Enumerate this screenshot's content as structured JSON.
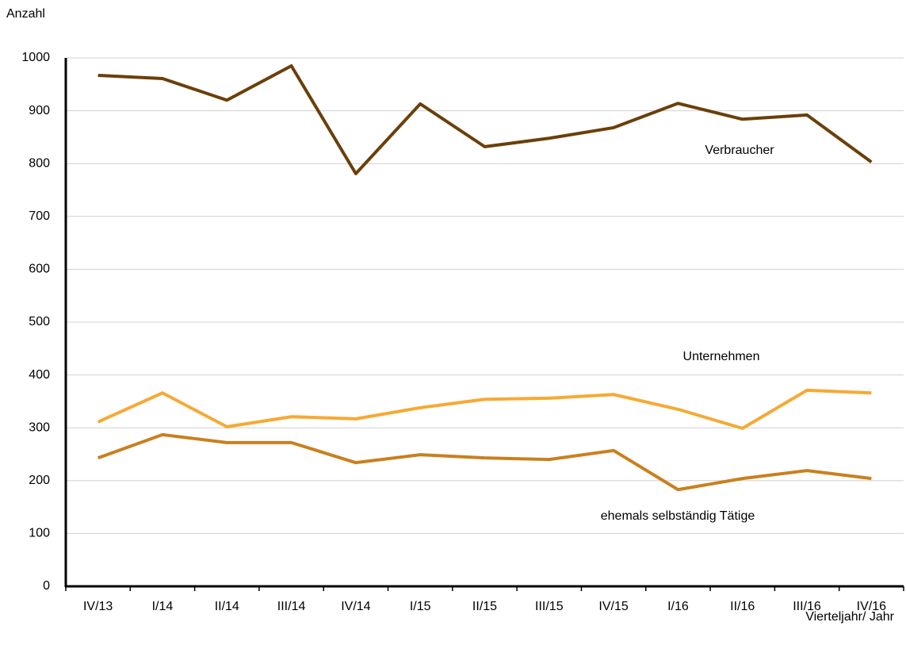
{
  "chart_data": {
    "type": "line",
    "ylabel": "Anzahl",
    "xlabel": "Vierteljahr/ Jahr",
    "categories": [
      "IV/13",
      "I/14",
      "II/14",
      "III/14",
      "IV/14",
      "I/15",
      "II/15",
      "III/15",
      "IV/15",
      "I/16",
      "II/16",
      "III/16",
      "IV/16"
    ],
    "series": [
      {
        "name": "Verbraucher",
        "color": "#6b3f0a",
        "values": [
          967,
          961,
          920,
          985,
          781,
          913,
          832,
          848,
          868,
          914,
          884,
          892,
          803
        ]
      },
      {
        "name": "Unternehmen",
        "color": "#f7a934",
        "values": [
          311,
          366,
          302,
          321,
          317,
          338,
          354,
          356,
          363,
          335,
          299,
          371,
          366
        ]
      },
      {
        "name": "ehemals selbständig Tätige",
        "color": "#c9801e",
        "values": [
          243,
          287,
          272,
          272,
          234,
          249,
          243,
          240,
          257,
          183,
          204,
          219,
          204
        ]
      }
    ],
    "ylim": [
      0,
      1000
    ],
    "yticks": [
      0,
      100,
      200,
      300,
      400,
      500,
      600,
      700,
      800,
      900,
      1000
    ],
    "grid": true
  }
}
